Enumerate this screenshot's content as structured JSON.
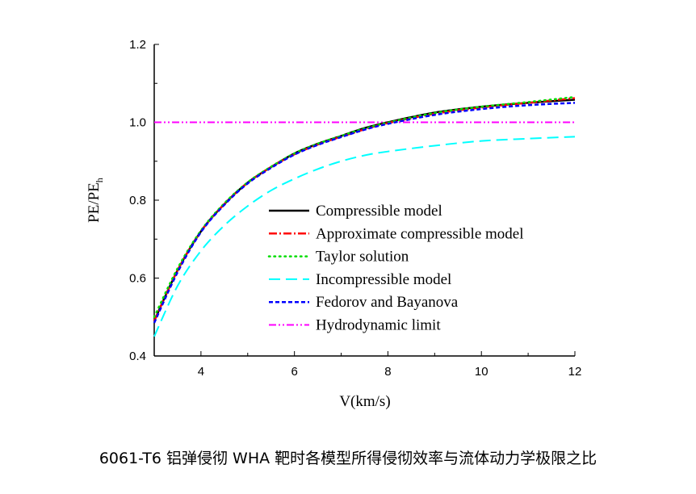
{
  "chart_data": {
    "type": "line",
    "xlabel": "V(km/s)",
    "ylabel_main": "PE/PE",
    "ylabel_sub": "h",
    "xlim": [
      3,
      12
    ],
    "ylim": [
      0.4,
      1.2
    ],
    "xticks": [
      4,
      6,
      8,
      10,
      12
    ],
    "yticks": [
      0.4,
      0.6,
      0.8,
      1.0,
      1.2
    ],
    "ytick_labels": [
      "0.4",
      "0.6",
      "0.8",
      "1.0",
      "1.2"
    ],
    "grid": false,
    "legend_placement": "center-right",
    "x": [
      3,
      3.5,
      4,
      4.5,
      5,
      5.5,
      6,
      6.5,
      7,
      7.5,
      8,
      9,
      10,
      11,
      12
    ],
    "series": [
      {
        "name": "Compressible model",
        "color": "#000000",
        "dash": "solid",
        "values": [
          0.49,
          0.62,
          0.72,
          0.79,
          0.845,
          0.885,
          0.92,
          0.945,
          0.965,
          0.985,
          1.0,
          1.025,
          1.04,
          1.05,
          1.058
        ]
      },
      {
        "name": "Approximate compressible model",
        "color": "#ff0000",
        "dash": "dashdot",
        "values": [
          0.49,
          0.62,
          0.72,
          0.79,
          0.845,
          0.885,
          0.918,
          0.943,
          0.963,
          0.982,
          0.998,
          1.022,
          1.038,
          1.05,
          1.062
        ]
      },
      {
        "name": "Taylor solution",
        "color": "#00dd00",
        "dash": "dot",
        "values": [
          0.5,
          0.625,
          0.722,
          0.792,
          0.846,
          0.886,
          0.92,
          0.945,
          0.965,
          0.984,
          0.999,
          1.024,
          1.04,
          1.052,
          1.065
        ]
      },
      {
        "name": "Incompressible model",
        "color": "#00ffff",
        "dash": "dash",
        "values": [
          0.45,
          0.58,
          0.67,
          0.735,
          0.785,
          0.825,
          0.855,
          0.88,
          0.9,
          0.915,
          0.925,
          0.94,
          0.952,
          0.958,
          0.963
        ]
      },
      {
        "name": "Fedorov and Bayanova",
        "color": "#0000ff",
        "dash": "shortdash",
        "values": [
          0.485,
          0.615,
          0.718,
          0.788,
          0.843,
          0.883,
          0.917,
          0.942,
          0.962,
          0.981,
          0.996,
          1.019,
          1.034,
          1.044,
          1.05
        ]
      },
      {
        "name": "Hydrodynamic limit",
        "color": "#ff00ff",
        "dash": "dashdotdot",
        "values": [
          1,
          1,
          1,
          1,
          1,
          1,
          1,
          1,
          1,
          1,
          1,
          1,
          1,
          1,
          1
        ]
      }
    ]
  },
  "caption": "6061-T6 铝弹侵彻 WHA 靶时各模型所得侵彻效率与流体动力学极限之比"
}
